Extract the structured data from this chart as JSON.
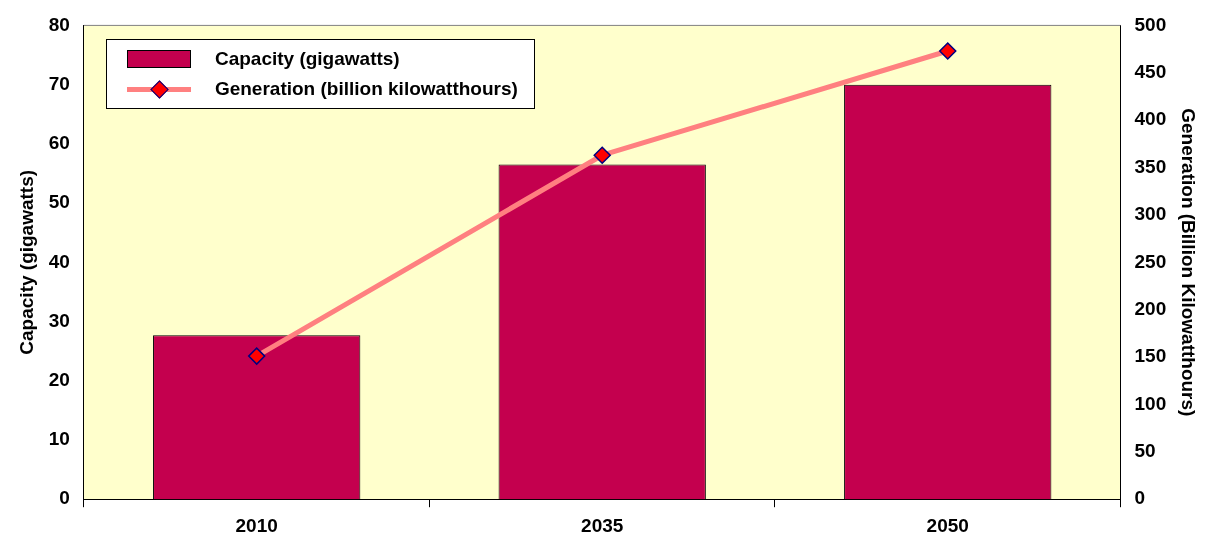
{
  "chart_data": {
    "type": "bar",
    "categories": [
      "2010",
      "2035",
      "2050"
    ],
    "series": [
      {
        "name": "Capacity (gigawatts)",
        "color": "#c4004e",
        "values": [
          27.7,
          56.5,
          70
        ]
      },
      {
        "name": "Generation (billion kilowatthours)",
        "type": "line",
        "axis": "y2",
        "color": "#ff8080",
        "values": [
          151,
          363,
          473
        ]
      }
    ],
    "ylabel": "Capacity (gigawatts)",
    "y2label": "Generation (Billion Kilowatthours)",
    "ylim": [
      0,
      80
    ],
    "yticks": [
      0,
      10,
      20,
      30,
      40,
      50,
      60,
      70,
      80
    ],
    "y2lim": [
      0,
      500
    ],
    "y2ticks": [
      0,
      50,
      100,
      150,
      200,
      250,
      300,
      350,
      400,
      450,
      500
    ],
    "grid": false,
    "legend": "top left",
    "marker": "diamond",
    "line_style": "solid"
  }
}
